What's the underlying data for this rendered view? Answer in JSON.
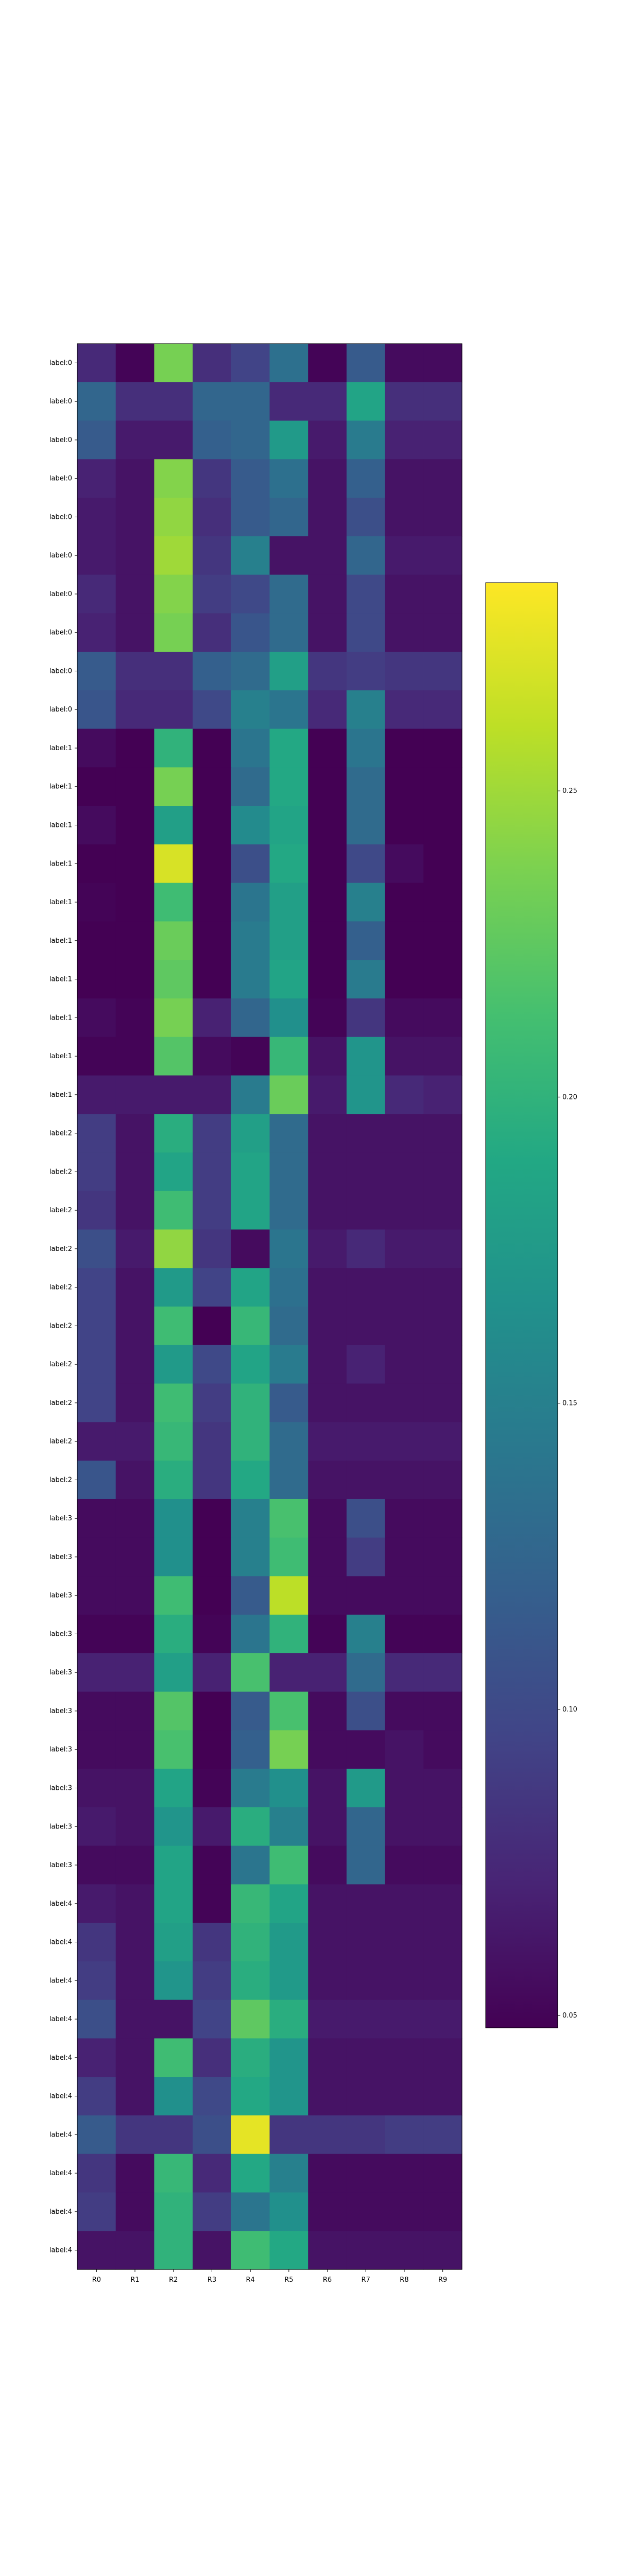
{
  "chart_data": {
    "type": "heatmap",
    "title": "",
    "xlabel": "",
    "ylabel": "",
    "colormap": "viridis",
    "x_categories": [
      "R0",
      "R1",
      "R2",
      "R3",
      "R4",
      "R5",
      "R6",
      "R7",
      "R8",
      "R9"
    ],
    "y_categories": [
      "label:0",
      "label:0",
      "label:0",
      "label:0",
      "label:0",
      "label:0",
      "label:0",
      "label:0",
      "label:0",
      "label:0",
      "label:1",
      "label:1",
      "label:1",
      "label:1",
      "label:1",
      "label:1",
      "label:1",
      "label:1",
      "label:1",
      "label:1",
      "label:2",
      "label:2",
      "label:2",
      "label:2",
      "label:2",
      "label:2",
      "label:2",
      "label:2",
      "label:2",
      "label:2",
      "label:3",
      "label:3",
      "label:3",
      "label:3",
      "label:3",
      "label:3",
      "label:3",
      "label:3",
      "label:3",
      "label:3",
      "label:4",
      "label:4",
      "label:4",
      "label:4",
      "label:4",
      "label:4",
      "label:4",
      "label:4",
      "label:4",
      "label:4"
    ],
    "values": [
      [
        0.075,
        0.05,
        0.235,
        0.08,
        0.095,
        0.135,
        0.05,
        0.115,
        0.055,
        0.055
      ],
      [
        0.125,
        0.08,
        0.08,
        0.125,
        0.125,
        0.075,
        0.075,
        0.185,
        0.08,
        0.08
      ],
      [
        0.115,
        0.065,
        0.065,
        0.12,
        0.125,
        0.175,
        0.065,
        0.145,
        0.07,
        0.07
      ],
      [
        0.07,
        0.06,
        0.24,
        0.085,
        0.115,
        0.135,
        0.06,
        0.12,
        0.06,
        0.06
      ],
      [
        0.065,
        0.06,
        0.245,
        0.08,
        0.115,
        0.125,
        0.06,
        0.105,
        0.06,
        0.06
      ],
      [
        0.065,
        0.06,
        0.25,
        0.085,
        0.15,
        0.06,
        0.06,
        0.125,
        0.065,
        0.065
      ],
      [
        0.075,
        0.06,
        0.24,
        0.09,
        0.1,
        0.13,
        0.06,
        0.1,
        0.06,
        0.06
      ],
      [
        0.07,
        0.06,
        0.235,
        0.08,
        0.11,
        0.13,
        0.06,
        0.1,
        0.06,
        0.06
      ],
      [
        0.115,
        0.08,
        0.08,
        0.12,
        0.13,
        0.18,
        0.085,
        0.09,
        0.085,
        0.085
      ],
      [
        0.11,
        0.075,
        0.075,
        0.1,
        0.15,
        0.14,
        0.075,
        0.15,
        0.075,
        0.075
      ],
      [
        0.055,
        0.045,
        0.2,
        0.045,
        0.14,
        0.19,
        0.045,
        0.14,
        0.045,
        0.045
      ],
      [
        0.045,
        0.045,
        0.235,
        0.045,
        0.13,
        0.19,
        0.045,
        0.13,
        0.045,
        0.045
      ],
      [
        0.055,
        0.045,
        0.18,
        0.045,
        0.16,
        0.185,
        0.045,
        0.13,
        0.045,
        0.045
      ],
      [
        0.045,
        0.045,
        0.27,
        0.045,
        0.105,
        0.19,
        0.045,
        0.1,
        0.055,
        0.045
      ],
      [
        0.05,
        0.045,
        0.21,
        0.045,
        0.14,
        0.18,
        0.045,
        0.15,
        0.045,
        0.045
      ],
      [
        0.045,
        0.045,
        0.23,
        0.045,
        0.145,
        0.18,
        0.045,
        0.12,
        0.045,
        0.045
      ],
      [
        0.045,
        0.045,
        0.225,
        0.045,
        0.145,
        0.185,
        0.045,
        0.145,
        0.045,
        0.045
      ],
      [
        0.055,
        0.05,
        0.235,
        0.07,
        0.125,
        0.165,
        0.05,
        0.085,
        0.055,
        0.055
      ],
      [
        0.05,
        0.05,
        0.22,
        0.055,
        0.05,
        0.205,
        0.06,
        0.17,
        0.06,
        0.06
      ],
      [
        0.065,
        0.065,
        0.065,
        0.065,
        0.145,
        0.23,
        0.065,
        0.17,
        0.075,
        0.07
      ],
      [
        0.09,
        0.06,
        0.195,
        0.09,
        0.18,
        0.13,
        0.06,
        0.06,
        0.06,
        0.06
      ],
      [
        0.09,
        0.06,
        0.185,
        0.09,
        0.185,
        0.13,
        0.06,
        0.06,
        0.06,
        0.06
      ],
      [
        0.085,
        0.06,
        0.21,
        0.09,
        0.185,
        0.13,
        0.06,
        0.06,
        0.06,
        0.06
      ],
      [
        0.105,
        0.065,
        0.245,
        0.085,
        0.055,
        0.14,
        0.065,
        0.075,
        0.065,
        0.065
      ],
      [
        0.095,
        0.06,
        0.175,
        0.095,
        0.185,
        0.135,
        0.06,
        0.06,
        0.06,
        0.06
      ],
      [
        0.095,
        0.06,
        0.21,
        0.045,
        0.205,
        0.13,
        0.06,
        0.06,
        0.06,
        0.06
      ],
      [
        0.095,
        0.06,
        0.175,
        0.1,
        0.185,
        0.145,
        0.06,
        0.07,
        0.06,
        0.06
      ],
      [
        0.095,
        0.06,
        0.21,
        0.09,
        0.2,
        0.115,
        0.06,
        0.06,
        0.06,
        0.06
      ],
      [
        0.065,
        0.065,
        0.205,
        0.085,
        0.2,
        0.13,
        0.065,
        0.065,
        0.065,
        0.065
      ],
      [
        0.11,
        0.06,
        0.195,
        0.085,
        0.19,
        0.13,
        0.06,
        0.06,
        0.06,
        0.06
      ],
      [
        0.055,
        0.055,
        0.165,
        0.045,
        0.15,
        0.215,
        0.055,
        0.105,
        0.055,
        0.055
      ],
      [
        0.055,
        0.055,
        0.165,
        0.045,
        0.15,
        0.21,
        0.055,
        0.09,
        0.055,
        0.055
      ],
      [
        0.055,
        0.055,
        0.21,
        0.045,
        0.115,
        0.26,
        0.055,
        0.055,
        0.055,
        0.055
      ],
      [
        0.05,
        0.05,
        0.195,
        0.05,
        0.14,
        0.2,
        0.05,
        0.15,
        0.05,
        0.05
      ],
      [
        0.07,
        0.07,
        0.18,
        0.07,
        0.215,
        0.07,
        0.07,
        0.13,
        0.075,
        0.075
      ],
      [
        0.055,
        0.055,
        0.22,
        0.045,
        0.115,
        0.215,
        0.055,
        0.105,
        0.055,
        0.055
      ],
      [
        0.055,
        0.055,
        0.215,
        0.045,
        0.12,
        0.235,
        0.055,
        0.055,
        0.06,
        0.055
      ],
      [
        0.06,
        0.06,
        0.185,
        0.05,
        0.145,
        0.165,
        0.06,
        0.175,
        0.06,
        0.06
      ],
      [
        0.065,
        0.06,
        0.17,
        0.065,
        0.195,
        0.15,
        0.06,
        0.125,
        0.06,
        0.06
      ],
      [
        0.055,
        0.055,
        0.185,
        0.05,
        0.14,
        0.21,
        0.055,
        0.125,
        0.055,
        0.055
      ],
      [
        0.065,
        0.06,
        0.185,
        0.05,
        0.205,
        0.185,
        0.06,
        0.06,
        0.06,
        0.06
      ],
      [
        0.085,
        0.06,
        0.18,
        0.085,
        0.2,
        0.175,
        0.06,
        0.06,
        0.06,
        0.06
      ],
      [
        0.09,
        0.06,
        0.17,
        0.09,
        0.195,
        0.175,
        0.06,
        0.06,
        0.06,
        0.06
      ],
      [
        0.105,
        0.06,
        0.06,
        0.095,
        0.225,
        0.195,
        0.065,
        0.065,
        0.065,
        0.065
      ],
      [
        0.07,
        0.06,
        0.21,
        0.08,
        0.195,
        0.17,
        0.06,
        0.06,
        0.06,
        0.06
      ],
      [
        0.09,
        0.06,
        0.165,
        0.1,
        0.19,
        0.17,
        0.06,
        0.06,
        0.06,
        0.06
      ],
      [
        0.115,
        0.085,
        0.085,
        0.105,
        0.275,
        0.085,
        0.085,
        0.085,
        0.09,
        0.09
      ],
      [
        0.085,
        0.055,
        0.205,
        0.075,
        0.19,
        0.15,
        0.055,
        0.055,
        0.055,
        0.055
      ],
      [
        0.09,
        0.055,
        0.2,
        0.09,
        0.14,
        0.165,
        0.055,
        0.055,
        0.055,
        0.055
      ],
      [
        0.06,
        0.06,
        0.2,
        0.06,
        0.21,
        0.19,
        0.06,
        0.06,
        0.06,
        0.06
      ]
    ],
    "vmin": 0.048,
    "vmax": 0.284,
    "colorbar": {
      "ticks": [
        0.05,
        0.1,
        0.15,
        0.2,
        0.25
      ],
      "tick_labels": [
        "0.05",
        "0.10",
        "0.15",
        "0.20",
        "0.25"
      ]
    }
  }
}
